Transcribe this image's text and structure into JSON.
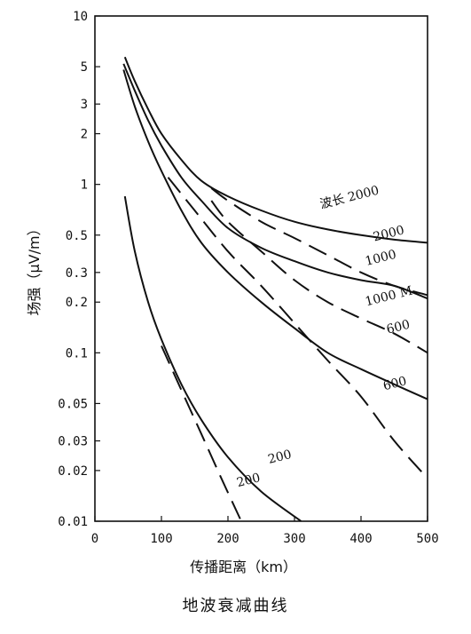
{
  "caption": "地波衰减曲线",
  "chart_data": {
    "type": "line",
    "xlabel": "传播距离（km）",
    "ylabel": "场强（μV/m）",
    "xlim": [
      0,
      500
    ],
    "ylim": [
      0.01,
      10
    ],
    "y_scale": "log",
    "x_ticks": [
      "0",
      "100",
      "200",
      "300",
      "400",
      "500"
    ],
    "y_ticks": [
      "10",
      "5",
      "3",
      "2",
      "1",
      "0.5",
      "0.3",
      "0.2",
      "0.1",
      "0.05",
      "0.03",
      "0.02",
      "0.01"
    ],
    "grid": false,
    "series": [
      {
        "name": "波长 2000",
        "style": "solid",
        "x": [
          45,
          60,
          80,
          100,
          130,
          160,
          200,
          250,
          300,
          350,
          400,
          450,
          500
        ],
        "y": [
          5.7,
          4.1,
          2.8,
          2.0,
          1.4,
          1.05,
          0.85,
          0.7,
          0.6,
          0.54,
          0.5,
          0.47,
          0.45
        ]
      },
      {
        "name": "2000",
        "style": "dashed",
        "x": [
          175,
          200,
          250,
          300,
          350,
          400,
          450,
          500
        ],
        "y": [
          0.95,
          0.8,
          0.6,
          0.48,
          0.38,
          0.3,
          0.25,
          0.22
        ]
      },
      {
        "name": "1000",
        "style": "solid",
        "x": [
          43,
          60,
          80,
          100,
          130,
          160,
          200,
          250,
          300,
          350,
          400,
          450,
          500
        ],
        "y": [
          5.2,
          3.6,
          2.4,
          1.7,
          1.1,
          0.8,
          0.55,
          0.42,
          0.35,
          0.3,
          0.27,
          0.25,
          0.21
        ]
      },
      {
        "name": "1000 M",
        "style": "dashed",
        "x": [
          175,
          200,
          250,
          300,
          350,
          400,
          450,
          500
        ],
        "y": [
          0.8,
          0.6,
          0.4,
          0.27,
          0.2,
          0.16,
          0.13,
          0.1
        ]
      },
      {
        "name": "600",
        "style": "solid",
        "x": [
          43,
          60,
          80,
          100,
          130,
          160,
          200,
          250,
          300,
          350,
          400,
          450,
          500
        ],
        "y": [
          4.8,
          2.9,
          1.8,
          1.2,
          0.7,
          0.45,
          0.3,
          0.2,
          0.14,
          0.1,
          0.08,
          0.065,
          0.053
        ]
      },
      {
        "name": "600",
        "style": "dashed",
        "x": [
          110,
          150,
          200,
          250,
          300,
          350,
          400,
          450,
          500
        ],
        "y": [
          1.1,
          0.7,
          0.4,
          0.25,
          0.15,
          0.09,
          0.055,
          0.03,
          0.018
        ]
      },
      {
        "name": "200",
        "style": "solid",
        "x": [
          45,
          60,
          80,
          100,
          130,
          160,
          200,
          250,
          310
        ],
        "y": [
          0.85,
          0.4,
          0.2,
          0.12,
          0.065,
          0.04,
          0.024,
          0.015,
          0.01
        ]
      },
      {
        "name": "200",
        "style": "dashed",
        "x": [
          100,
          130,
          160,
          190,
          220
        ],
        "y": [
          0.11,
          0.06,
          0.033,
          0.018,
          0.01
        ]
      }
    ],
    "labels": [
      {
        "text": "波长 2000",
        "x": 340,
        "y": 0.72
      },
      {
        "text": "2000",
        "x": 420,
        "y": 0.46
      },
      {
        "text": "1000",
        "x": 408,
        "y": 0.33
      },
      {
        "text": "1000 M",
        "x": 408,
        "y": 0.19
      },
      {
        "text": "600",
        "x": 440,
        "y": 0.13
      },
      {
        "text": "600",
        "x": 435,
        "y": 0.06
      },
      {
        "text": "200",
        "x": 262,
        "y": 0.022
      },
      {
        "text": "200",
        "x": 215,
        "y": 0.016
      }
    ]
  }
}
